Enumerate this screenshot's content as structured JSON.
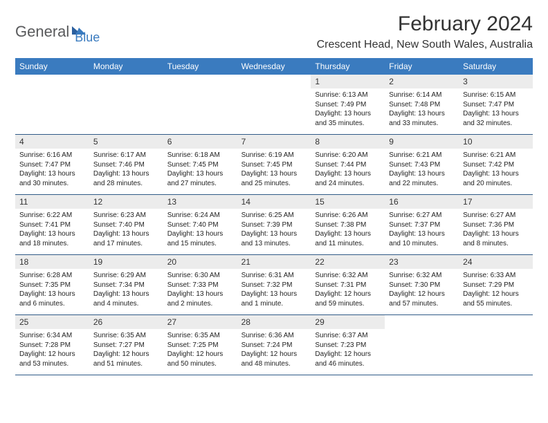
{
  "logo": {
    "general": "General",
    "blue": "Blue"
  },
  "title": "February 2024",
  "location": "Crescent Head, New South Wales, Australia",
  "colors": {
    "header_bg": "#3a7bbf",
    "header_text": "#ffffff",
    "daynum_bg": "#ececec",
    "row_border": "#2f5a87",
    "logo_gray": "#58595b",
    "logo_blue": "#3a7bbf",
    "text": "#333333",
    "body_text": "#222222",
    "background": "#ffffff"
  },
  "days_of_week": [
    "Sunday",
    "Monday",
    "Tuesday",
    "Wednesday",
    "Thursday",
    "Friday",
    "Saturday"
  ],
  "weeks": [
    [
      {
        "day": "",
        "sunrise": "",
        "sunset": "",
        "daylight": ""
      },
      {
        "day": "",
        "sunrise": "",
        "sunset": "",
        "daylight": ""
      },
      {
        "day": "",
        "sunrise": "",
        "sunset": "",
        "daylight": ""
      },
      {
        "day": "",
        "sunrise": "",
        "sunset": "",
        "daylight": ""
      },
      {
        "day": "1",
        "sunrise": "Sunrise: 6:13 AM",
        "sunset": "Sunset: 7:49 PM",
        "daylight": "Daylight: 13 hours and 35 minutes."
      },
      {
        "day": "2",
        "sunrise": "Sunrise: 6:14 AM",
        "sunset": "Sunset: 7:48 PM",
        "daylight": "Daylight: 13 hours and 33 minutes."
      },
      {
        "day": "3",
        "sunrise": "Sunrise: 6:15 AM",
        "sunset": "Sunset: 7:47 PM",
        "daylight": "Daylight: 13 hours and 32 minutes."
      }
    ],
    [
      {
        "day": "4",
        "sunrise": "Sunrise: 6:16 AM",
        "sunset": "Sunset: 7:47 PM",
        "daylight": "Daylight: 13 hours and 30 minutes."
      },
      {
        "day": "5",
        "sunrise": "Sunrise: 6:17 AM",
        "sunset": "Sunset: 7:46 PM",
        "daylight": "Daylight: 13 hours and 28 minutes."
      },
      {
        "day": "6",
        "sunrise": "Sunrise: 6:18 AM",
        "sunset": "Sunset: 7:45 PM",
        "daylight": "Daylight: 13 hours and 27 minutes."
      },
      {
        "day": "7",
        "sunrise": "Sunrise: 6:19 AM",
        "sunset": "Sunset: 7:45 PM",
        "daylight": "Daylight: 13 hours and 25 minutes."
      },
      {
        "day": "8",
        "sunrise": "Sunrise: 6:20 AM",
        "sunset": "Sunset: 7:44 PM",
        "daylight": "Daylight: 13 hours and 24 minutes."
      },
      {
        "day": "9",
        "sunrise": "Sunrise: 6:21 AM",
        "sunset": "Sunset: 7:43 PM",
        "daylight": "Daylight: 13 hours and 22 minutes."
      },
      {
        "day": "10",
        "sunrise": "Sunrise: 6:21 AM",
        "sunset": "Sunset: 7:42 PM",
        "daylight": "Daylight: 13 hours and 20 minutes."
      }
    ],
    [
      {
        "day": "11",
        "sunrise": "Sunrise: 6:22 AM",
        "sunset": "Sunset: 7:41 PM",
        "daylight": "Daylight: 13 hours and 18 minutes."
      },
      {
        "day": "12",
        "sunrise": "Sunrise: 6:23 AM",
        "sunset": "Sunset: 7:40 PM",
        "daylight": "Daylight: 13 hours and 17 minutes."
      },
      {
        "day": "13",
        "sunrise": "Sunrise: 6:24 AM",
        "sunset": "Sunset: 7:40 PM",
        "daylight": "Daylight: 13 hours and 15 minutes."
      },
      {
        "day": "14",
        "sunrise": "Sunrise: 6:25 AM",
        "sunset": "Sunset: 7:39 PM",
        "daylight": "Daylight: 13 hours and 13 minutes."
      },
      {
        "day": "15",
        "sunrise": "Sunrise: 6:26 AM",
        "sunset": "Sunset: 7:38 PM",
        "daylight": "Daylight: 13 hours and 11 minutes."
      },
      {
        "day": "16",
        "sunrise": "Sunrise: 6:27 AM",
        "sunset": "Sunset: 7:37 PM",
        "daylight": "Daylight: 13 hours and 10 minutes."
      },
      {
        "day": "17",
        "sunrise": "Sunrise: 6:27 AM",
        "sunset": "Sunset: 7:36 PM",
        "daylight": "Daylight: 13 hours and 8 minutes."
      }
    ],
    [
      {
        "day": "18",
        "sunrise": "Sunrise: 6:28 AM",
        "sunset": "Sunset: 7:35 PM",
        "daylight": "Daylight: 13 hours and 6 minutes."
      },
      {
        "day": "19",
        "sunrise": "Sunrise: 6:29 AM",
        "sunset": "Sunset: 7:34 PM",
        "daylight": "Daylight: 13 hours and 4 minutes."
      },
      {
        "day": "20",
        "sunrise": "Sunrise: 6:30 AM",
        "sunset": "Sunset: 7:33 PM",
        "daylight": "Daylight: 13 hours and 2 minutes."
      },
      {
        "day": "21",
        "sunrise": "Sunrise: 6:31 AM",
        "sunset": "Sunset: 7:32 PM",
        "daylight": "Daylight: 13 hours and 1 minute."
      },
      {
        "day": "22",
        "sunrise": "Sunrise: 6:32 AM",
        "sunset": "Sunset: 7:31 PM",
        "daylight": "Daylight: 12 hours and 59 minutes."
      },
      {
        "day": "23",
        "sunrise": "Sunrise: 6:32 AM",
        "sunset": "Sunset: 7:30 PM",
        "daylight": "Daylight: 12 hours and 57 minutes."
      },
      {
        "day": "24",
        "sunrise": "Sunrise: 6:33 AM",
        "sunset": "Sunset: 7:29 PM",
        "daylight": "Daylight: 12 hours and 55 minutes."
      }
    ],
    [
      {
        "day": "25",
        "sunrise": "Sunrise: 6:34 AM",
        "sunset": "Sunset: 7:28 PM",
        "daylight": "Daylight: 12 hours and 53 minutes."
      },
      {
        "day": "26",
        "sunrise": "Sunrise: 6:35 AM",
        "sunset": "Sunset: 7:27 PM",
        "daylight": "Daylight: 12 hours and 51 minutes."
      },
      {
        "day": "27",
        "sunrise": "Sunrise: 6:35 AM",
        "sunset": "Sunset: 7:25 PM",
        "daylight": "Daylight: 12 hours and 50 minutes."
      },
      {
        "day": "28",
        "sunrise": "Sunrise: 6:36 AM",
        "sunset": "Sunset: 7:24 PM",
        "daylight": "Daylight: 12 hours and 48 minutes."
      },
      {
        "day": "29",
        "sunrise": "Sunrise: 6:37 AM",
        "sunset": "Sunset: 7:23 PM",
        "daylight": "Daylight: 12 hours and 46 minutes."
      },
      {
        "day": "",
        "sunrise": "",
        "sunset": "",
        "daylight": ""
      },
      {
        "day": "",
        "sunrise": "",
        "sunset": "",
        "daylight": ""
      }
    ]
  ]
}
